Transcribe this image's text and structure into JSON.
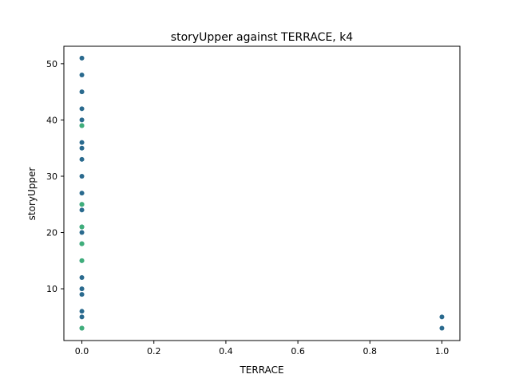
{
  "chart_data": {
    "type": "scatter",
    "title": "storyUpper against TERRACE, k4",
    "xlabel": "TERRACE",
    "ylabel": "storyUpper",
    "xlim": [
      -0.05,
      1.05
    ],
    "ylim": [
      0.8,
      53.1
    ],
    "xticks": [
      0.0,
      0.2,
      0.4,
      0.6,
      0.8,
      1.0
    ],
    "xtick_labels": [
      "0.0",
      "0.2",
      "0.4",
      "0.6",
      "0.8",
      "1.0"
    ],
    "yticks": [
      10,
      20,
      30,
      40,
      50
    ],
    "ytick_labels": [
      "10",
      "20",
      "30",
      "40",
      "50"
    ],
    "grid": false,
    "legend": "none",
    "series": [
      {
        "color": "#2a6a8e",
        "points": [
          [
            0,
            51
          ],
          [
            0,
            48
          ],
          [
            0,
            45
          ],
          [
            0,
            42
          ],
          [
            0,
            40
          ],
          [
            0,
            39
          ],
          [
            0,
            36
          ],
          [
            0,
            35
          ],
          [
            0,
            33
          ],
          [
            0,
            30
          ],
          [
            0,
            27
          ],
          [
            0,
            25
          ],
          [
            0,
            24
          ],
          [
            0,
            21
          ],
          [
            0,
            20
          ],
          [
            0,
            18
          ],
          [
            0,
            15
          ],
          [
            0,
            12
          ],
          [
            0,
            10
          ],
          [
            0,
            9
          ],
          [
            0,
            6
          ],
          [
            0,
            5
          ],
          [
            0,
            3
          ],
          [
            1,
            5
          ],
          [
            1,
            3
          ]
        ]
      },
      {
        "color": "#3fae7a",
        "points": [
          [
            0,
            39
          ],
          [
            0,
            25
          ],
          [
            0,
            21
          ],
          [
            0,
            18
          ],
          [
            0,
            15
          ],
          [
            0,
            3
          ]
        ]
      }
    ]
  }
}
